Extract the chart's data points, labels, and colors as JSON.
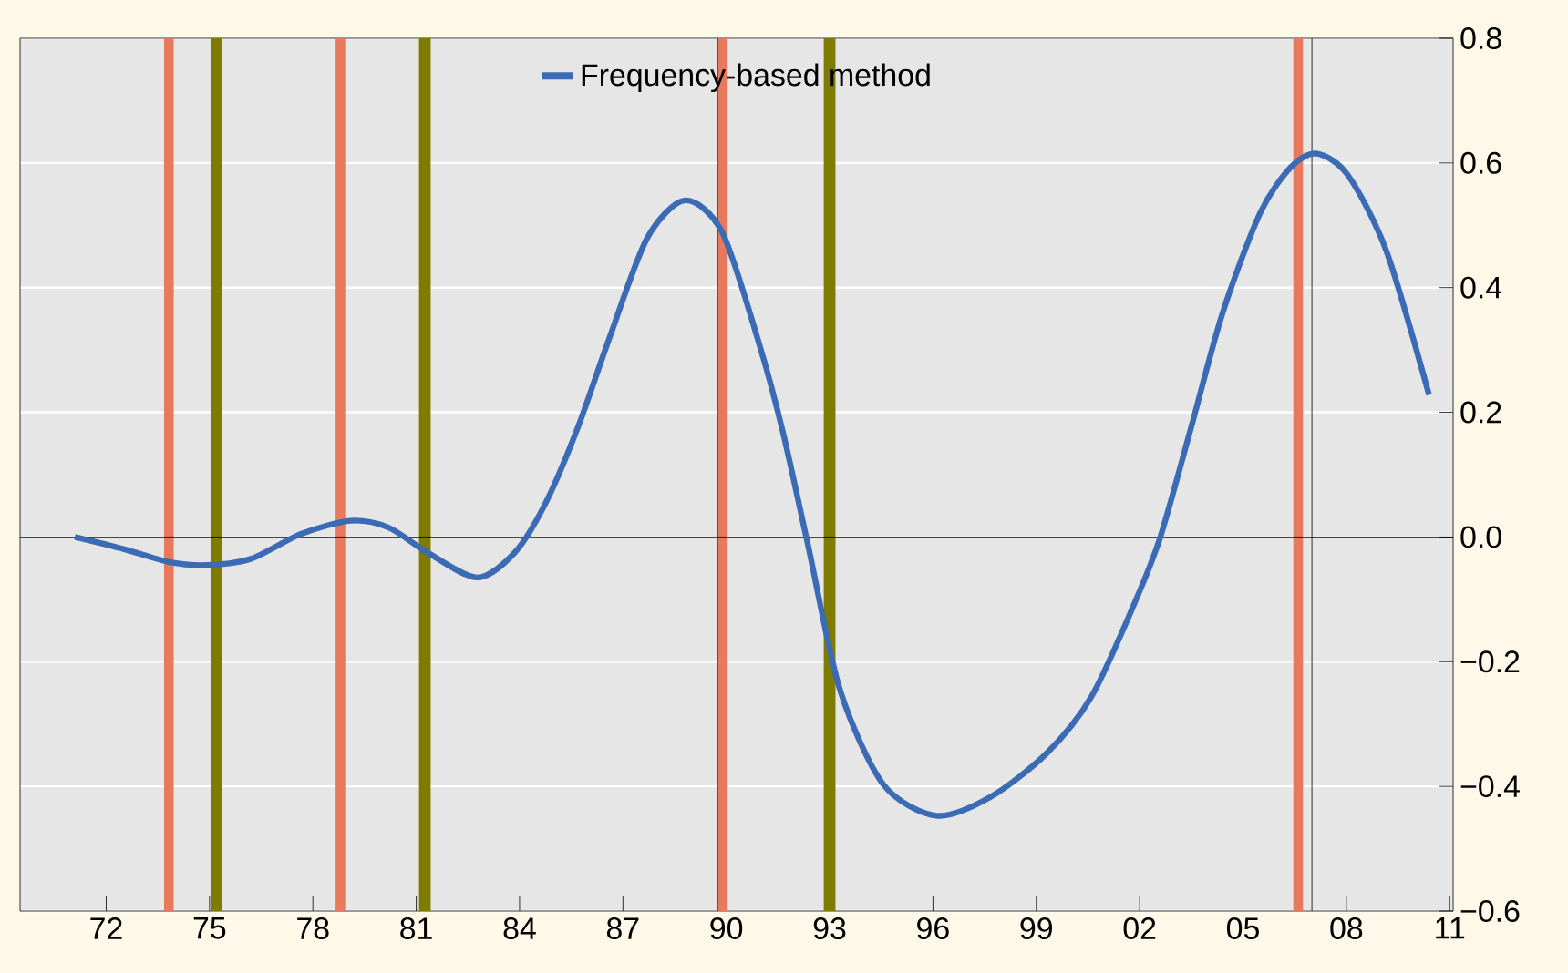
{
  "chart_data": {
    "type": "line",
    "x": [
      1971.09,
      1972.55,
      1973.82,
      1974.92,
      1976.2,
      1977.66,
      1979.1,
      1980.2,
      1981.3,
      1982.76,
      1983.86,
      1984.77,
      1985.7,
      1986.6,
      1987.7,
      1988.8,
      1989.88,
      1990.97,
      1991.65,
      1992.38,
      1993.3,
      1994.56,
      1996.1,
      1997.67,
      1999.3,
      2000.6,
      2001.86,
      2002.6,
      2003.5,
      2004.4,
      2005.5,
      2006.4,
      2007.15,
      2008.05,
      2009.16,
      2010.4
    ],
    "series": [
      {
        "name": "Frequency-based method",
        "color": "#3b6bb5",
        "values": [
          0.0,
          -0.02,
          -0.04,
          -0.045,
          -0.035,
          0.005,
          0.026,
          0.015,
          -0.024,
          -0.065,
          -0.025,
          0.056,
          0.177,
          0.318,
          0.479,
          0.54,
          0.489,
          0.307,
          0.167,
          -0.015,
          -0.245,
          -0.397,
          -0.447,
          -0.417,
          -0.347,
          -0.256,
          -0.105,
          0.0,
          0.177,
          0.358,
          0.52,
          0.594,
          0.615,
          0.58,
          0.459,
          0.228
        ]
      }
    ],
    "xlim": [
      1969.5,
      2011.1
    ],
    "xticks": [
      {
        "value": 1972,
        "label": "72"
      },
      {
        "value": 1975,
        "label": "75"
      },
      {
        "value": 1978,
        "label": "78"
      },
      {
        "value": 1981,
        "label": "81"
      },
      {
        "value": 1984,
        "label": "84"
      },
      {
        "value": 1987,
        "label": "87"
      },
      {
        "value": 1990,
        "label": "90"
      },
      {
        "value": 1993,
        "label": "93"
      },
      {
        "value": 1996,
        "label": "96"
      },
      {
        "value": 1999,
        "label": "99"
      },
      {
        "value": 2002,
        "label": "02"
      },
      {
        "value": 2005,
        "label": "05"
      },
      {
        "value": 2008,
        "label": "08"
      },
      {
        "value": 2011,
        "label": "11"
      }
    ],
    "ylim": [
      -0.6,
      0.8
    ],
    "yticks": [
      {
        "value": -0.6,
        "label": "−0.6"
      },
      {
        "value": -0.4,
        "label": "−0.4"
      },
      {
        "value": -0.2,
        "label": "−0.2"
      },
      {
        "value": 0.0,
        "label": "0.0"
      },
      {
        "value": 0.2,
        "label": "0.2"
      },
      {
        "value": 0.4,
        "label": "0.4"
      },
      {
        "value": 0.6,
        "label": "0.6"
      },
      {
        "value": 0.8,
        "label": "0.8"
      }
    ],
    "ref_lines": [
      {
        "axis": "y",
        "value": 0,
        "color": "#000000"
      },
      {
        "axis": "x",
        "value": 1989.75,
        "color": "#000000"
      },
      {
        "axis": "x",
        "value": 2007.0,
        "color": "#000000"
      }
    ],
    "bands": [
      {
        "axis": "x",
        "from": 1973.68,
        "to": 1973.96,
        "color": "#e8795c"
      },
      {
        "axis": "x",
        "from": 1975.03,
        "to": 1975.37,
        "color": "#7f7a00"
      },
      {
        "axis": "x",
        "from": 1978.66,
        "to": 1978.94,
        "color": "#e8795c"
      },
      {
        "axis": "x",
        "from": 1981.08,
        "to": 1981.42,
        "color": "#7f7a00"
      },
      {
        "axis": "x",
        "from": 1989.76,
        "to": 1990.04,
        "color": "#e8795c"
      },
      {
        "axis": "x",
        "from": 1992.83,
        "to": 1993.17,
        "color": "#7f7a00"
      },
      {
        "axis": "x",
        "from": 2006.46,
        "to": 2006.74,
        "color": "#e8795c"
      }
    ],
    "grid": "y",
    "legend": "top",
    "marker": "none",
    "line_style": "solid"
  }
}
